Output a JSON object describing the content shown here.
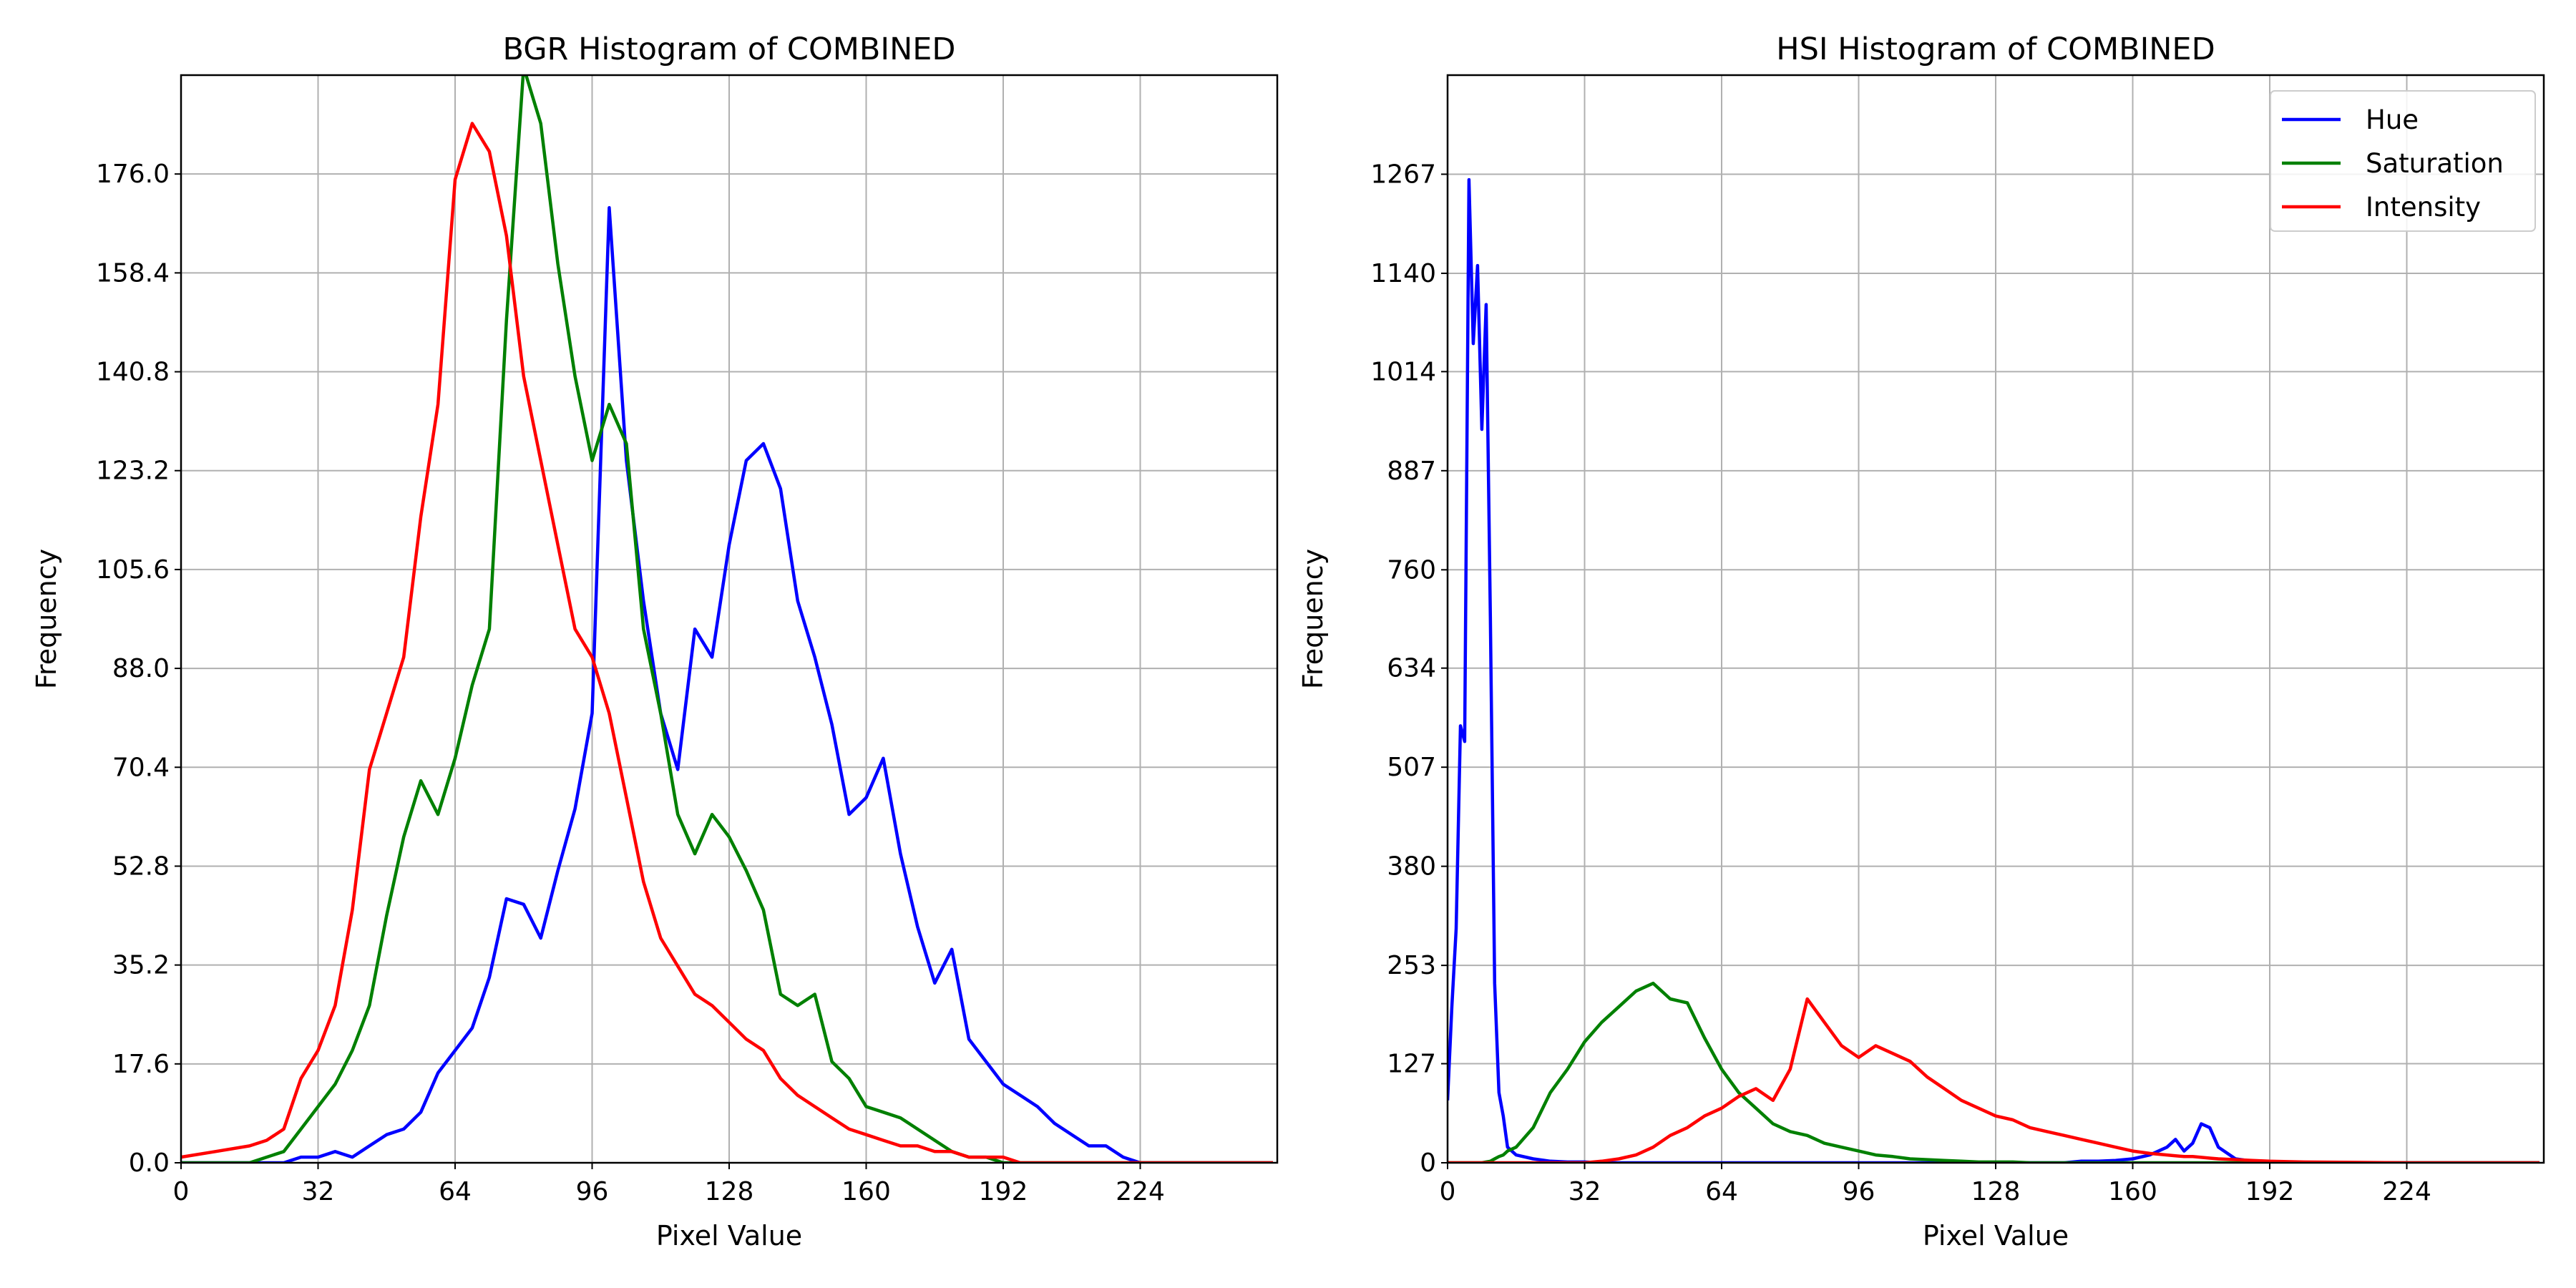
{
  "chart_data": [
    {
      "type": "line",
      "title": "BGR Histogram of COMBINED",
      "xlabel": "Pixel Value",
      "ylabel": "Frequency",
      "xlim": [
        0,
        256
      ],
      "ylim": [
        0,
        193.6
      ],
      "x_ticks": [
        0,
        32,
        64,
        96,
        128,
        160,
        192,
        224
      ],
      "y_ticks": [
        0,
        17.6,
        35.2,
        52.8,
        70.4,
        88.0,
        105.6,
        123.2,
        140.8,
        158.4,
        176.0
      ],
      "y_tick_labels": [
        "0.0",
        "17.6",
        "35.2",
        "52.8",
        "70.4",
        "88.0",
        "105.6",
        "123.2",
        "140.8",
        "158.4",
        "176.0"
      ],
      "grid": true,
      "x": [
        0,
        8,
        16,
        20,
        24,
        28,
        32,
        36,
        40,
        44,
        48,
        52,
        56,
        60,
        64,
        68,
        72,
        76,
        80,
        84,
        88,
        92,
        96,
        100,
        104,
        108,
        112,
        116,
        120,
        124,
        128,
        132,
        136,
        140,
        144,
        148,
        152,
        156,
        160,
        164,
        168,
        172,
        176,
        180,
        184,
        188,
        192,
        196,
        200,
        204,
        208,
        212,
        216,
        220,
        224,
        228,
        232,
        240,
        248,
        255
      ],
      "series": [
        {
          "color": "#0000ff",
          "values": [
            0,
            0,
            0,
            0,
            0,
            1,
            1,
            2,
            1,
            3,
            5,
            6,
            9,
            16,
            20,
            24,
            33,
            47,
            46,
            40,
            52,
            63,
            80,
            170,
            125,
            100,
            80,
            70,
            95,
            90,
            110,
            125,
            128,
            120,
            100,
            90,
            78,
            62,
            65,
            72,
            55,
            42,
            32,
            38,
            22,
            18,
            14,
            12,
            10,
            7,
            5,
            3,
            3,
            1,
            0,
            0,
            0,
            0,
            0,
            0
          ]
        },
        {
          "color": "#008000",
          "values": [
            0,
            0,
            0,
            1,
            2,
            6,
            10,
            14,
            20,
            28,
            44,
            58,
            68,
            62,
            72,
            85,
            95,
            150,
            195,
            185,
            160,
            140,
            125,
            135,
            128,
            95,
            80,
            62,
            55,
            62,
            58,
            52,
            45,
            30,
            28,
            30,
            18,
            15,
            10,
            9,
            8,
            6,
            4,
            2,
            1,
            1,
            0,
            0,
            0,
            0,
            0,
            0,
            0,
            0,
            0,
            0,
            0,
            0,
            0,
            0
          ]
        },
        {
          "color": "#ff0000",
          "values": [
            1,
            2,
            3,
            4,
            6,
            15,
            20,
            28,
            45,
            70,
            80,
            90,
            115,
            135,
            175,
            185,
            180,
            165,
            140,
            125,
            110,
            95,
            90,
            80,
            65,
            50,
            40,
            35,
            30,
            28,
            25,
            22,
            20,
            15,
            12,
            10,
            8,
            6,
            5,
            4,
            3,
            3,
            2,
            2,
            1,
            1,
            1,
            0,
            0,
            0,
            0,
            0,
            0,
            0,
            0,
            0,
            0,
            0,
            0,
            0
          ]
        }
      ]
    },
    {
      "type": "line",
      "title": "HSI Histogram of COMBINED",
      "xlabel": "Pixel Value",
      "ylabel": "Frequency",
      "xlim": [
        0,
        256
      ],
      "ylim": [
        0,
        1394
      ],
      "x_ticks": [
        0,
        32,
        64,
        96,
        128,
        160,
        192,
        224
      ],
      "y_ticks": [
        0,
        127,
        253,
        380,
        507,
        634,
        760,
        887,
        1014,
        1140,
        1267
      ],
      "y_tick_labels": [
        "0",
        "127",
        "253",
        "380",
        "507",
        "634",
        "760",
        "887",
        "1014",
        "1140",
        "1267"
      ],
      "grid": true,
      "legend": {
        "position": "top-right",
        "entries": [
          "Hue",
          "Saturation",
          "Intensity"
        ]
      },
      "x": [
        0,
        1,
        2,
        3,
        4,
        5,
        6,
        7,
        8,
        9,
        10,
        11,
        12,
        13,
        14,
        16,
        20,
        24,
        28,
        32,
        36,
        40,
        44,
        48,
        52,
        56,
        60,
        64,
        68,
        72,
        76,
        80,
        84,
        88,
        92,
        96,
        100,
        104,
        108,
        112,
        116,
        120,
        124,
        128,
        132,
        136,
        140,
        144,
        148,
        152,
        156,
        160,
        164,
        168,
        170,
        172,
        174,
        176,
        178,
        180,
        184,
        188,
        192,
        200,
        224,
        255
      ],
      "series": [
        {
          "name": "Hue",
          "color": "#0000ff",
          "values": [
            80,
            200,
            300,
            560,
            540,
            1260,
            1050,
            1150,
            940,
            1100,
            700,
            230,
            90,
            60,
            20,
            10,
            5,
            2,
            1,
            1,
            0,
            0,
            0,
            0,
            0,
            0,
            0,
            0,
            0,
            0,
            0,
            0,
            0,
            0,
            0,
            0,
            0,
            0,
            0,
            0,
            0,
            0,
            0,
            0,
            0,
            0,
            0,
            0,
            2,
            2,
            3,
            5,
            10,
            20,
            30,
            15,
            25,
            50,
            45,
            20,
            5,
            2,
            1,
            0,
            0,
            0
          ]
        },
        {
          "name": "Saturation",
          "color": "#008000",
          "values": [
            0,
            0,
            0,
            0,
            0,
            0,
            0,
            0,
            0,
            1,
            2,
            5,
            8,
            10,
            15,
            20,
            45,
            90,
            120,
            155,
            180,
            200,
            220,
            230,
            210,
            205,
            160,
            120,
            90,
            70,
            50,
            40,
            35,
            25,
            20,
            15,
            10,
            8,
            5,
            4,
            3,
            2,
            1,
            1,
            1,
            0,
            0,
            0,
            0,
            0,
            0,
            0,
            0,
            0,
            0,
            0,
            0,
            0,
            0,
            0,
            0,
            0,
            0,
            0,
            0,
            0
          ]
        },
        {
          "name": "Intensity",
          "color": "#ff0000",
          "values": [
            0,
            0,
            0,
            0,
            0,
            0,
            0,
            0,
            0,
            0,
            0,
            0,
            0,
            0,
            0,
            0,
            0,
            0,
            0,
            0,
            2,
            5,
            10,
            20,
            35,
            45,
            60,
            70,
            85,
            95,
            80,
            120,
            210,
            180,
            150,
            135,
            150,
            140,
            130,
            110,
            95,
            80,
            70,
            60,
            55,
            45,
            40,
            35,
            30,
            25,
            20,
            15,
            12,
            10,
            9,
            8,
            8,
            7,
            6,
            5,
            4,
            3,
            2,
            1,
            0,
            0
          ]
        }
      ]
    }
  ]
}
